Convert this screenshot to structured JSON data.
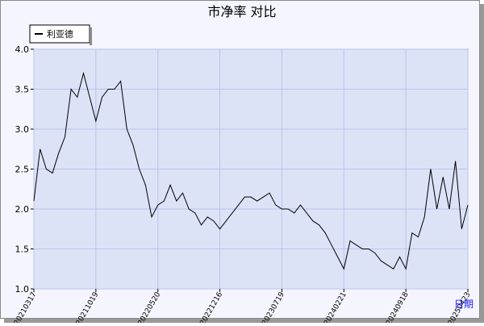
{
  "chart_data": {
    "type": "line",
    "title": "市净率  对比",
    "x_label": "日期",
    "categories": [
      "20210317",
      null,
      null,
      null,
      null,
      null,
      null,
      null,
      null,
      null,
      "20211019",
      null,
      null,
      null,
      null,
      null,
      null,
      null,
      null,
      null,
      "20220520",
      null,
      null,
      null,
      null,
      null,
      null,
      null,
      null,
      null,
      "20221216",
      null,
      null,
      null,
      null,
      null,
      null,
      null,
      null,
      null,
      "20230719",
      null,
      null,
      null,
      null,
      null,
      null,
      null,
      null,
      null,
      "20240221",
      null,
      null,
      null,
      null,
      null,
      null,
      null,
      null,
      null,
      "20240918",
      null,
      null,
      null,
      null,
      null,
      null,
      null,
      null,
      null,
      "20250423"
    ],
    "series": [
      {
        "name": "利亚德",
        "color": "#000000",
        "values": [
          2.1,
          2.75,
          2.5,
          2.45,
          2.7,
          2.9,
          3.5,
          3.4,
          3.7,
          3.4,
          3.1,
          3.4,
          3.5,
          3.5,
          3.6,
          3.0,
          2.8,
          2.5,
          2.3,
          1.9,
          2.05,
          2.1,
          2.3,
          2.1,
          2.2,
          2.0,
          1.95,
          1.8,
          1.9,
          1.85,
          1.75,
          1.85,
          1.95,
          2.05,
          2.15,
          2.15,
          2.1,
          2.15,
          2.2,
          2.05,
          2.0,
          2.0,
          1.95,
          2.05,
          1.95,
          1.85,
          1.8,
          1.7,
          1.55,
          1.4,
          1.25,
          1.6,
          1.55,
          1.5,
          1.5,
          1.45,
          1.35,
          1.3,
          1.25,
          1.4,
          1.25,
          1.7,
          1.65,
          1.9,
          2.5,
          2.0,
          2.4,
          2.0,
          2.6,
          1.75,
          2.05
        ]
      }
    ],
    "ylim": [
      1.0,
      4.0
    ],
    "yticks": [
      {
        "value": 1.0,
        "label": "1.0"
      },
      {
        "value": 1.5,
        "label": "1.5"
      },
      {
        "value": 2.0,
        "label": "2.0"
      },
      {
        "value": 2.5,
        "label": "2.5"
      },
      {
        "value": 3.0,
        "label": "3.0"
      },
      {
        "value": 3.5,
        "label": "3.5"
      },
      {
        "value": 4.0,
        "label": "4.0"
      }
    ],
    "grid": true,
    "legend": "top-left"
  }
}
